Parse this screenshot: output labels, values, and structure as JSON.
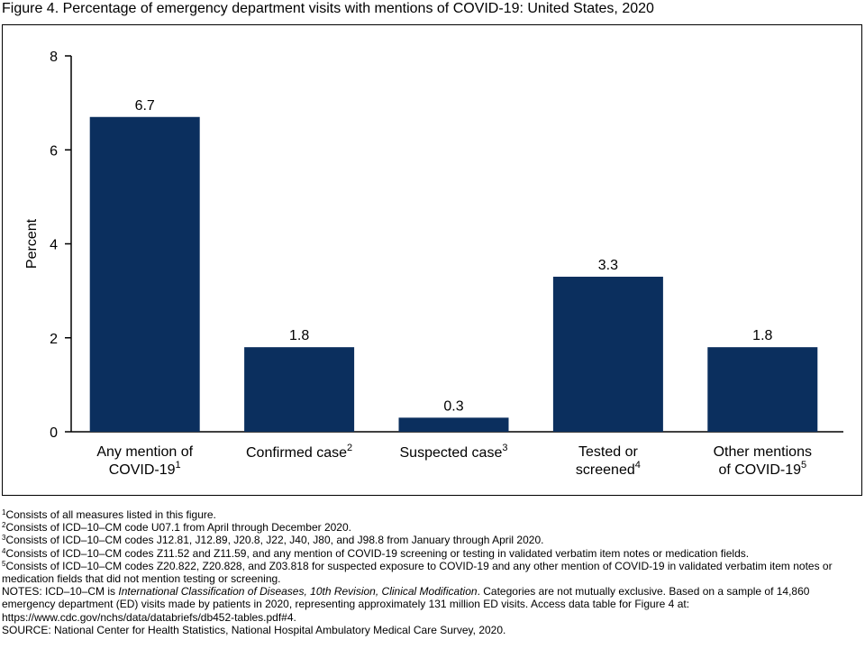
{
  "figure": {
    "title": "Figure 4. Percentage of emergency department visits with mentions of COVID-19: United States, 2020"
  },
  "chart_data": {
    "type": "bar",
    "categories": [
      {
        "lines": [
          "Any mention of",
          "COVID-19"
        ],
        "sup": "1"
      },
      {
        "lines": [
          "Confirmed case"
        ],
        "sup": "2"
      },
      {
        "lines": [
          "Suspected case"
        ],
        "sup": "3"
      },
      {
        "lines": [
          "Tested or",
          "screened"
        ],
        "sup": "4"
      },
      {
        "lines": [
          "Other mentions",
          "of COVID-19"
        ],
        "sup": "5"
      }
    ],
    "values": [
      6.7,
      1.8,
      0.3,
      3.3,
      1.8
    ],
    "value_labels": [
      "6.7",
      "1.8",
      "0.3",
      "3.3",
      "1.8"
    ],
    "ylabel": "Percent",
    "ylim": [
      0,
      8
    ],
    "yticks": [
      0,
      2,
      4,
      6,
      8
    ],
    "bar_color": "#0b2f5e",
    "grid": false
  },
  "footnotes": [
    {
      "sup": "1",
      "text": "Consists of all measures listed in this figure."
    },
    {
      "sup": "2",
      "text": "Consists of ICD–10–CM code U07.1 from April through December 2020."
    },
    {
      "sup": "3",
      "text": "Consists of ICD–10–CM codes J12.81, J12.89, J20.8, J22, J40, J80, and J98.8 from January through April 2020."
    },
    {
      "sup": "4",
      "text": "Consists of ICD–10–CM codes Z11.52 and Z11.59, and any mention of COVID-19 screening or testing in validated verbatim item notes or medication fields."
    },
    {
      "sup": "5",
      "text": "Consists of ICD–10–CM codes Z20.822, Z20.828, and Z03.818 for suspected exposure to COVID-19 and any other mention of COVID-19 in validated verbatim item notes or medication fields that did not mention testing or screening."
    }
  ],
  "notes": {
    "prefix": "NOTES: ICD–10–CM is ",
    "italic": "International Classification of Diseases, 10th Revision, Clinical Modification",
    "suffix": ". Categories are not mutually exclusive. Based on a sample of 14,860 emergency department (ED) visits made by patients in 2020, representing approximately 131 million ED visits. Access data table for Figure 4 at: https://www.cdc.gov/nchs/data/databriefs/db452-tables.pdf#4."
  },
  "source": "SOURCE: National Center for Health Statistics, National Hospital Ambulatory Medical Care Survey, 2020."
}
